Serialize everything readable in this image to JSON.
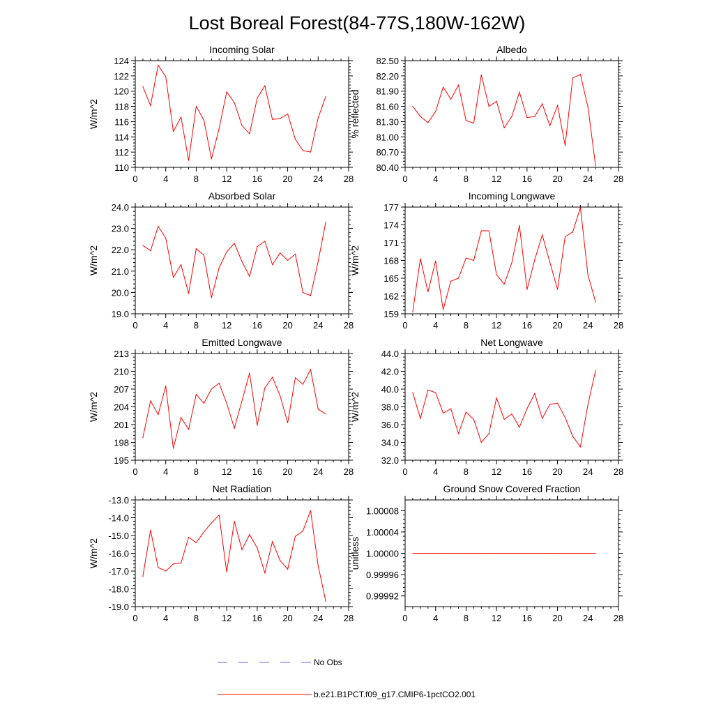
{
  "figure": {
    "title": "Lost Boreal Forest(84-77S,180W-162W)",
    "legend": [
      {
        "label": "No Obs",
        "color": "#6a6ad8",
        "style": "dashed"
      },
      {
        "label": "b.e21.B1PCT.f09_g17.CMIP6-1pctCO2.001",
        "color": "#ff0000",
        "style": "solid"
      }
    ]
  },
  "chart_data": [
    {
      "type": "line",
      "title": "Incoming Solar",
      "ylabel": "W/m^2",
      "xlim": [
        0,
        28
      ],
      "xticks": [
        0,
        4,
        8,
        12,
        16,
        20,
        24,
        28
      ],
      "ylim": [
        110,
        124
      ],
      "yticks": [
        "110",
        "112",
        "114",
        "116",
        "118",
        "120",
        "122",
        "124"
      ],
      "grid": false,
      "series": [
        {
          "name": "b.e21.B1PCT.f09_g17.CMIP6-1pctCO2.001",
          "color": "#ff0000",
          "x": [
            1,
            2,
            3,
            4,
            5,
            6,
            7,
            8,
            9,
            10,
            11,
            12,
            13,
            14,
            15,
            16,
            17,
            18,
            19,
            20,
            21,
            22,
            23,
            24,
            25
          ],
          "y": [
            120.6,
            118.1,
            123.4,
            121.9,
            114.7,
            116.6,
            110.9,
            118.0,
            116.2,
            111.1,
            115.1,
            119.9,
            118.5,
            115.5,
            114.4,
            119.1,
            120.7,
            116.3,
            116.4,
            117.0,
            113.7,
            112.2,
            112.0,
            116.5,
            119.3
          ]
        }
      ]
    },
    {
      "type": "line",
      "title": "Albedo",
      "ylabel": "% reflected",
      "xlim": [
        0,
        28
      ],
      "xticks": [
        0,
        4,
        8,
        12,
        16,
        20,
        24,
        28
      ],
      "ylim": [
        80.4,
        82.5
      ],
      "yticks": [
        "80.40",
        "80.70",
        "81.00",
        "81.30",
        "81.60",
        "81.90",
        "82.20",
        "82.50"
      ],
      "grid": false,
      "series": [
        {
          "name": "b.e21.B1PCT.f09_g17.CMIP6-1pctCO2.001",
          "color": "#ff0000",
          "x": [
            1,
            2,
            3,
            4,
            5,
            6,
            7,
            8,
            9,
            10,
            11,
            12,
            13,
            14,
            15,
            16,
            17,
            18,
            19,
            20,
            21,
            22,
            23,
            24,
            25
          ],
          "y": [
            81.6,
            81.4,
            81.28,
            81.5,
            81.98,
            81.74,
            82.02,
            81.32,
            81.27,
            82.22,
            81.6,
            81.7,
            81.18,
            81.4,
            81.88,
            81.38,
            81.4,
            81.65,
            81.22,
            81.62,
            80.83,
            82.16,
            82.23,
            81.58,
            80.43
          ]
        }
      ]
    },
    {
      "type": "line",
      "title": "Absorbed Solar",
      "ylabel": "W/m^2",
      "xlim": [
        0,
        28
      ],
      "xticks": [
        0,
        4,
        8,
        12,
        16,
        20,
        24,
        28
      ],
      "ylim": [
        19,
        24
      ],
      "yticks": [
        "19.0",
        "20.0",
        "21.0",
        "22.0",
        "23.0",
        "24.0"
      ],
      "grid": false,
      "series": [
        {
          "name": "b.e21.B1PCT.f09_g17.CMIP6-1pctCO2.001",
          "color": "#ff0000",
          "x": [
            1,
            2,
            3,
            4,
            5,
            6,
            7,
            8,
            9,
            10,
            11,
            12,
            13,
            14,
            15,
            16,
            17,
            18,
            19,
            20,
            21,
            22,
            23,
            24,
            25
          ],
          "y": [
            22.2,
            21.95,
            23.1,
            22.55,
            20.7,
            21.3,
            19.95,
            22.05,
            21.75,
            19.75,
            21.15,
            21.9,
            22.3,
            21.45,
            20.75,
            22.15,
            22.4,
            21.3,
            21.85,
            21.5,
            21.8,
            20.0,
            19.85,
            21.45,
            23.3
          ]
        }
      ]
    },
    {
      "type": "line",
      "title": "Incoming Longwave",
      "ylabel": "W/m^2",
      "xlim": [
        0,
        28
      ],
      "xticks": [
        0,
        4,
        8,
        12,
        16,
        20,
        24,
        28
      ],
      "ylim": [
        159,
        177
      ],
      "yticks": [
        "159",
        "162",
        "165",
        "168",
        "171",
        "174",
        "177"
      ],
      "grid": false,
      "series": [
        {
          "name": "b.e21.B1PCT.f09_g17.CMIP6-1pctCO2.001",
          "color": "#ff0000",
          "x": [
            1,
            2,
            3,
            4,
            5,
            6,
            7,
            8,
            9,
            10,
            11,
            12,
            13,
            14,
            15,
            16,
            17,
            18,
            19,
            20,
            21,
            22,
            23,
            24,
            25
          ],
          "y": [
            159.3,
            168.3,
            162.7,
            167.9,
            159.7,
            164.5,
            165.0,
            168.4,
            168.0,
            173.0,
            173.0,
            165.6,
            164.0,
            167.6,
            173.9,
            163.1,
            168.1,
            172.3,
            167.7,
            163.1,
            172.0,
            172.8,
            176.9,
            165.5,
            161.0
          ]
        }
      ]
    },
    {
      "type": "line",
      "title": "Emitted Longwave",
      "ylabel": "W/m^2",
      "xlim": [
        0,
        28
      ],
      "xticks": [
        0,
        4,
        8,
        12,
        16,
        20,
        24,
        28
      ],
      "ylim": [
        195,
        213
      ],
      "yticks": [
        "195",
        "198",
        "201",
        "204",
        "207",
        "210",
        "213"
      ],
      "grid": false,
      "series": [
        {
          "name": "b.e21.B1PCT.f09_g17.CMIP6-1pctCO2.001",
          "color": "#ff0000",
          "x": [
            1,
            2,
            3,
            4,
            5,
            6,
            7,
            8,
            9,
            10,
            11,
            12,
            13,
            14,
            15,
            16,
            17,
            18,
            19,
            20,
            21,
            22,
            23,
            24,
            25
          ],
          "y": [
            198.8,
            205.0,
            202.7,
            207.5,
            197.0,
            202.2,
            200.2,
            206.1,
            204.6,
            207.0,
            208.0,
            204.6,
            200.4,
            205.0,
            209.7,
            200.9,
            207.2,
            209.0,
            205.9,
            201.3,
            208.9,
            207.8,
            210.3,
            203.6,
            202.8
          ]
        }
      ]
    },
    {
      "type": "line",
      "title": "Net Longwave",
      "ylabel": "W/m^2",
      "xlim": [
        0,
        28
      ],
      "xticks": [
        0,
        4,
        8,
        12,
        16,
        20,
        24,
        28
      ],
      "ylim": [
        32,
        44
      ],
      "yticks": [
        "32.0",
        "34.0",
        "36.0",
        "38.0",
        "40.0",
        "42.0",
        "44.0"
      ],
      "grid": false,
      "series": [
        {
          "name": "b.e21.B1PCT.f09_g17.CMIP6-1pctCO2.001",
          "color": "#ff0000",
          "x": [
            1,
            2,
            3,
            4,
            5,
            6,
            7,
            8,
            9,
            10,
            11,
            12,
            13,
            14,
            15,
            16,
            17,
            18,
            19,
            20,
            21,
            22,
            23,
            24,
            25
          ],
          "y": [
            39.6,
            36.7,
            39.9,
            39.6,
            37.3,
            37.8,
            35.0,
            37.4,
            36.6,
            34.0,
            35.0,
            39.0,
            36.6,
            37.2,
            35.7,
            37.8,
            39.5,
            36.7,
            38.3,
            38.4,
            36.8,
            34.7,
            33.5,
            38.3,
            42.1
          ]
        }
      ]
    },
    {
      "type": "line",
      "title": "Net Radiation",
      "ylabel": "W/m^2",
      "xlim": [
        0,
        28
      ],
      "xticks": [
        0,
        4,
        8,
        12,
        16,
        20,
        24,
        28
      ],
      "ylim": [
        -19,
        -13
      ],
      "yticks": [
        "-19.0",
        "-18.0",
        "-17.0",
        "-16.0",
        "-15.0",
        "-14.0",
        "-13.0"
      ],
      "grid": false,
      "series": [
        {
          "name": "b.e21.B1PCT.f09_g17.CMIP6-1pctCO2.001",
          "color": "#ff0000",
          "x": [
            1,
            2,
            3,
            4,
            5,
            6,
            7,
            8,
            9,
            10,
            11,
            12,
            13,
            14,
            15,
            16,
            17,
            18,
            19,
            20,
            21,
            22,
            23,
            24,
            25
          ],
          "y": [
            -17.3,
            -14.7,
            -16.8,
            -17.0,
            -16.6,
            -16.55,
            -15.1,
            -15.4,
            -14.8,
            -14.3,
            -13.85,
            -17.05,
            -14.2,
            -15.8,
            -14.95,
            -15.7,
            -17.1,
            -15.35,
            -16.4,
            -16.9,
            -15.05,
            -14.75,
            -13.6,
            -16.7,
            -18.7
          ]
        }
      ]
    },
    {
      "type": "line",
      "title": "Ground Snow Covered Fraction",
      "ylabel": "unitless",
      "xlim": [
        0,
        28
      ],
      "xticks": [
        0,
        4,
        8,
        12,
        16,
        20,
        24,
        28
      ],
      "ylim": [
        0.9999,
        1.0001
      ],
      "yticks": [
        "0.99992",
        "0.99996",
        "1.00000",
        "1.00004",
        "1.00008"
      ],
      "ytick_values": [
        0.99992,
        0.99996,
        1.0,
        1.00004,
        1.00008
      ],
      "grid": false,
      "series": [
        {
          "name": "b.e21.B1PCT.f09_g17.CMIP6-1pctCO2.001",
          "color": "#ff0000",
          "x": [
            1,
            2,
            3,
            4,
            5,
            6,
            7,
            8,
            9,
            10,
            11,
            12,
            13,
            14,
            15,
            16,
            17,
            18,
            19,
            20,
            21,
            22,
            23,
            24,
            25
          ],
          "y": [
            1,
            1,
            1,
            1,
            1,
            1,
            1,
            1,
            1,
            1,
            1,
            1,
            1,
            1,
            1,
            1,
            1,
            1,
            1,
            1,
            1,
            1,
            1,
            1,
            1
          ]
        }
      ]
    }
  ]
}
